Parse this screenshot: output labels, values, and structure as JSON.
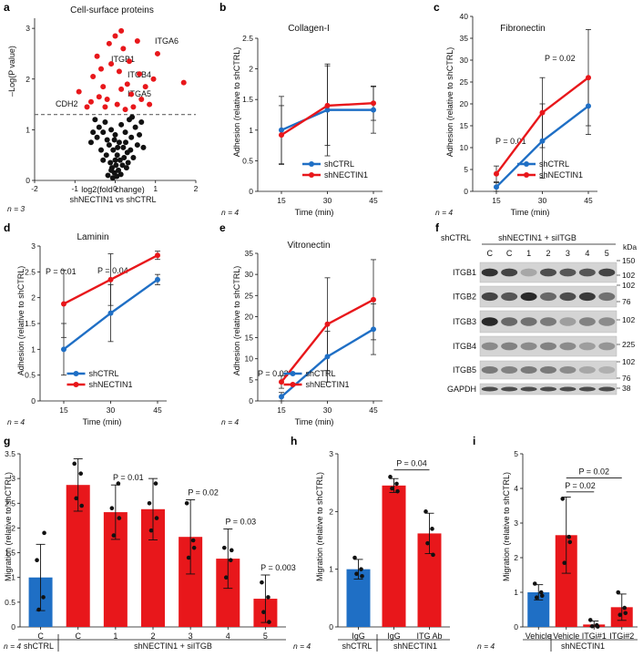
{
  "colors": {
    "blue": "#1f6fc5",
    "red": "#e8171b",
    "black": "#111111",
    "grey": "#666666",
    "blot_bg": "#d4d4d4"
  },
  "panels": {
    "a": {
      "label": "a",
      "title": "Cell-surface proteins",
      "xlabel_line1": "log2(fold change)",
      "xlabel_line2": "shNECTIN1 vs shCTRL",
      "ylabel": "–Log(P value)",
      "n": "n = 3",
      "labels": [
        "ITGA6",
        "ITGB1",
        "ITGB4",
        "ITGA5",
        "CDH2"
      ]
    },
    "b": {
      "label": "b",
      "title": "Collagen-I",
      "ylabel": "Adhesion (relative to shCTRL)",
      "xlabel": "Time (min)",
      "n": "n = 4"
    },
    "c": {
      "label": "c",
      "title": "Fibronectin",
      "ylabel": "Adhesion (relative to shCTRL)",
      "xlabel": "Time (min)",
      "n": "n = 4",
      "annotations": [
        "P = 0.01",
        "P = 0.02"
      ]
    },
    "d": {
      "label": "d",
      "title": "Laminin",
      "ylabel": "Adhesion (relative to shCTRL)",
      "xlabel": "Time (min)",
      "n": "n = 4",
      "annotations": [
        "P = 0.01",
        "P = 0.04"
      ]
    },
    "e": {
      "label": "e",
      "title": "Vitronectin",
      "ylabel": "Adhesion (relative to shCTRL)",
      "xlabel": "Time (min)",
      "n": "n = 4",
      "annotations": [
        "P = 0.02"
      ]
    },
    "f": {
      "label": "f",
      "group1": "shCTRL",
      "group2": "shNECTIN1 + siITGB",
      "lanes": [
        "C",
        "C",
        "1",
        "2",
        "3",
        "4",
        "5"
      ],
      "rows": [
        "ITGB1",
        "ITGB2",
        "ITGB3",
        "ITGB4",
        "ITGB5",
        "GAPDH"
      ],
      "kda_title": "kDa",
      "kda": [
        "150",
        "102",
        "102",
        "76",
        "102",
        "225",
        "102",
        "76",
        "38"
      ]
    },
    "g": {
      "label": "g",
      "ylabel": "Migration (relative to shCTRL)",
      "n": "n = 4",
      "group1": "shCTRL",
      "group2": "shNECTIN1 + siITGB",
      "annotations": [
        "P = 0.01",
        "P = 0.02",
        "P = 0.03",
        "P = 0.003"
      ]
    },
    "h": {
      "label": "h",
      "ylabel": "Migration (relative to shCTRL)",
      "n": "n = 4",
      "group1": "shCTRL",
      "group2": "shNECTIN1",
      "annotations": [
        "P = 0.04"
      ]
    },
    "i": {
      "label": "i",
      "ylabel": "Migration (relative to shCTRL)",
      "n": "n = 4",
      "group2": "shNECTIN1",
      "annotations": [
        "P = 0.02",
        "P = 0.02",
        "P = 0.02"
      ]
    }
  },
  "chart_data": [
    {
      "id": "a",
      "type": "scatter",
      "title": "Cell-surface proteins",
      "xlabel": "log2(fold change) shNECTIN1 vs shCTRL",
      "ylabel": "–Log(P value)",
      "xlim": [
        -2,
        2
      ],
      "ylim": [
        0,
        3.2
      ],
      "xticks": [
        -2,
        -1,
        0,
        1,
        2
      ],
      "yticks": [
        0,
        1,
        2,
        3
      ],
      "threshold": 1.3,
      "highlighted": [
        {
          "label": "ITGA6",
          "x": 1.05,
          "y": 2.5
        },
        {
          "label": "ITGB1",
          "x": 0.32,
          "y": 2.05
        },
        {
          "label": "ITGB4",
          "x": 1.7,
          "y": 1.93
        },
        {
          "label": "ITGA5",
          "x": 0.5,
          "y": 1.5
        },
        {
          "label": "CDH2",
          "x": -0.05,
          "y": 1.25
        }
      ],
      "series": [
        {
          "name": "significant",
          "color": "#e8171b",
          "points": [
            [
              -0.9,
              1.75
            ],
            [
              -0.6,
              1.55
            ],
            [
              -0.55,
              2.05
            ],
            [
              -0.45,
              2.45
            ],
            [
              -0.35,
              2.2
            ],
            [
              -0.3,
              1.85
            ],
            [
              -0.2,
              1.6
            ],
            [
              -0.15,
              2.7
            ],
            [
              -0.1,
              2.3
            ],
            [
              0.0,
              2.85
            ],
            [
              0.05,
              1.5
            ],
            [
              0.1,
              2.15
            ],
            [
              0.15,
              1.8
            ],
            [
              0.2,
              2.6
            ],
            [
              0.25,
              1.4
            ],
            [
              0.3,
              1.9
            ],
            [
              0.35,
              2.35
            ],
            [
              0.4,
              1.7
            ],
            [
              0.45,
              1.45
            ],
            [
              0.6,
              2.1
            ],
            [
              0.65,
              1.6
            ],
            [
              0.75,
              1.85
            ],
            [
              0.85,
              1.5
            ],
            [
              0.95,
              2.0
            ],
            [
              -0.25,
              1.45
            ],
            [
              -0.7,
              1.45
            ],
            [
              0.55,
              2.75
            ],
            [
              -0.4,
              1.65
            ],
            [
              0.15,
              2.95
            ],
            [
              1.05,
              2.5
            ],
            [
              1.7,
              1.93
            ]
          ]
        },
        {
          "name": "non-significant",
          "color": "#111111",
          "points": [
            [
              -0.5,
              1.2
            ],
            [
              -0.4,
              1.05
            ],
            [
              -0.3,
              0.95
            ],
            [
              -0.25,
              1.15
            ],
            [
              -0.2,
              0.8
            ],
            [
              -0.15,
              0.7
            ],
            [
              -0.1,
              1.0
            ],
            [
              -0.05,
              0.6
            ],
            [
              0.0,
              0.9
            ],
            [
              0.05,
              0.5
            ],
            [
              0.1,
              0.75
            ],
            [
              0.15,
              1.1
            ],
            [
              0.2,
              0.65
            ],
            [
              0.25,
              0.95
            ],
            [
              0.3,
              0.55
            ],
            [
              0.35,
              1.2
            ],
            [
              0.4,
              0.85
            ],
            [
              0.45,
              0.45
            ],
            [
              0.5,
              1.05
            ],
            [
              0.55,
              0.7
            ],
            [
              -0.45,
              0.85
            ],
            [
              -0.35,
              0.6
            ],
            [
              -0.3,
              0.4
            ],
            [
              -0.22,
              0.5
            ],
            [
              -0.12,
              0.35
            ],
            [
              -0.08,
              0.25
            ],
            [
              -0.02,
              0.15
            ],
            [
              0.02,
              0.3
            ],
            [
              0.08,
              0.2
            ],
            [
              0.12,
              0.4
            ],
            [
              0.18,
              0.3
            ],
            [
              0.22,
              0.45
            ],
            [
              0.28,
              0.25
            ],
            [
              0.32,
              0.35
            ],
            [
              0.38,
              0.6
            ],
            [
              0.6,
              0.9
            ],
            [
              0.65,
              1.15
            ],
            [
              0.7,
              0.65
            ],
            [
              -0.55,
              0.95
            ],
            [
              -0.6,
              0.75
            ],
            [
              -0.18,
              0.1
            ],
            [
              -0.06,
              0.05
            ],
            [
              0.04,
              0.08
            ],
            [
              0.14,
              0.12
            ],
            [
              -0.1,
              0.2
            ],
            [
              0.0,
              0.4
            ],
            [
              0.06,
              0.65
            ],
            [
              -0.02,
              0.8
            ],
            [
              0.26,
              0.75
            ],
            [
              0.42,
              1.25
            ]
          ]
        }
      ],
      "n": "n = 3"
    },
    {
      "id": "b",
      "type": "line",
      "title": "Collagen-I",
      "xlabel": "Time (min)",
      "ylabel": "Adhesion (relative to shCTRL)",
      "x": [
        15,
        30,
        45
      ],
      "ylim": [
        0,
        2.5
      ],
      "yticks": [
        0,
        0.5,
        1,
        1.5,
        2,
        2.5
      ],
      "legend": "bottom-right",
      "series": [
        {
          "name": "shCTRL",
          "color": "#1f6fc5",
          "values": [
            1.0,
            1.33,
            1.33
          ],
          "err": [
            0.55,
            0.75,
            0.38
          ]
        },
        {
          "name": "shNECTIN1",
          "color": "#e8171b",
          "values": [
            0.92,
            1.4,
            1.44
          ],
          "err": [
            0.48,
            0.65,
            0.28
          ]
        }
      ]
    },
    {
      "id": "c",
      "type": "line",
      "title": "Fibronectin",
      "xlabel": "Time (min)",
      "ylabel": "Adhesion (relative to shCTRL)",
      "x": [
        15,
        30,
        45
      ],
      "ylim": [
        0,
        40
      ],
      "yticks": [
        0,
        5,
        10,
        15,
        20,
        25,
        30,
        35,
        40
      ],
      "legend": "bottom-right",
      "series": [
        {
          "name": "shCTRL",
          "color": "#1f6fc5",
          "values": [
            1.0,
            11.5,
            19.5
          ],
          "err": [
            1.0,
            8.5,
            6.5
          ]
        },
        {
          "name": "shNECTIN1",
          "color": "#e8171b",
          "values": [
            4.0,
            18.0,
            26.0
          ],
          "err": [
            1.8,
            8.0,
            11.0
          ]
        }
      ]
    },
    {
      "id": "d",
      "type": "line",
      "title": "Laminin",
      "xlabel": "Time (min)",
      "ylabel": "Adhesion (relative to shCTRL)",
      "x": [
        15,
        30,
        45
      ],
      "ylim": [
        0,
        3
      ],
      "yticks": [
        0,
        0.5,
        1,
        1.5,
        2,
        2.5,
        3
      ],
      "legend": "bottom-center",
      "series": [
        {
          "name": "shCTRL",
          "color": "#1f6fc5",
          "values": [
            1.0,
            1.7,
            2.35
          ],
          "err": [
            0.5,
            0.55,
            0.1
          ]
        },
        {
          "name": "shNECTIN1",
          "color": "#e8171b",
          "values": [
            1.88,
            2.35,
            2.82
          ],
          "err": [
            0.65,
            0.5,
            0.08
          ]
        }
      ]
    },
    {
      "id": "e",
      "type": "line",
      "title": "Vitronectin",
      "xlabel": "Time (min)",
      "ylabel": "Adhesion (relative to shCTRL)",
      "x": [
        15,
        30,
        45
      ],
      "ylim": [
        0,
        35
      ],
      "yticks": [
        0,
        5,
        10,
        15,
        20,
        25,
        30,
        35
      ],
      "legend": "bottom-center",
      "series": [
        {
          "name": "shCTRL",
          "color": "#1f6fc5",
          "values": [
            1.0,
            10.5,
            17.0
          ],
          "err": [
            1.0,
            6.0,
            6.0
          ]
        },
        {
          "name": "shNECTIN1",
          "color": "#e8171b",
          "values": [
            4.5,
            18.2,
            24.0
          ],
          "err": [
            1.5,
            11.0,
            9.5
          ]
        }
      ]
    },
    {
      "id": "g",
      "type": "bar",
      "ylabel": "Migration (relative to shCTRL)",
      "ylim": [
        0,
        3.5
      ],
      "yticks": [
        0,
        0.5,
        1,
        1.5,
        2,
        2.5,
        3,
        3.5
      ],
      "categories": [
        "C",
        "C",
        "1",
        "2",
        "3",
        "4",
        "5"
      ],
      "values": [
        1.0,
        2.87,
        2.32,
        2.38,
        1.82,
        1.38,
        0.57
      ],
      "err": [
        0.67,
        0.53,
        0.55,
        0.62,
        0.75,
        0.6,
        0.48
      ],
      "colors": [
        "#1f6fc5",
        "#e8171b",
        "#e8171b",
        "#e8171b",
        "#e8171b",
        "#e8171b",
        "#e8171b"
      ],
      "points": [
        [
          1.35,
          0.6,
          0.35,
          1.9
        ],
        [
          3.3,
          3.1,
          2.6,
          2.45
        ],
        [
          2.4,
          2.9,
          1.85,
          2.2
        ],
        [
          2.5,
          2.9,
          1.95,
          2.2
        ],
        [
          2.5,
          1.75,
          1.4,
          1.6
        ],
        [
          1.6,
          1.35,
          1.0,
          1.55
        ],
        [
          0.9,
          0.6,
          0.3,
          0.1
        ]
      ],
      "annotations": [
        {
          "text": "P = 0.01",
          "bar": 2
        },
        {
          "text": "P = 0.02",
          "bar": 4
        },
        {
          "text": "P = 0.03",
          "bar": 5
        },
        {
          "text": "P = 0.003",
          "bar": 6
        }
      ]
    },
    {
      "id": "h",
      "type": "bar",
      "ylabel": "Migration (relative to shCTRL)",
      "ylim": [
        0,
        3
      ],
      "yticks": [
        0,
        1,
        2,
        3
      ],
      "categories": [
        "IgG",
        "IgG",
        "ITG Ab"
      ],
      "values": [
        1.0,
        2.45,
        1.62
      ],
      "err": [
        0.17,
        0.12,
        0.35
      ],
      "colors": [
        "#1f6fc5",
        "#e8171b",
        "#e8171b"
      ],
      "points": [
        [
          1.2,
          1.0,
          0.92,
          0.88
        ],
        [
          2.6,
          2.48,
          2.4,
          2.35
        ],
        [
          2.0,
          1.7,
          1.45,
          1.25
        ]
      ],
      "annotations": [
        {
          "text": "P = 0.04",
          "from": 1,
          "to": 2
        }
      ]
    },
    {
      "id": "i",
      "type": "bar",
      "ylabel": "Migration (relative to shCTRL)",
      "ylim": [
        0,
        5
      ],
      "yticks": [
        0,
        1,
        2,
        3,
        4,
        5
      ],
      "categories": [
        "Vehicle",
        "Vehicle",
        "ITGi#1",
        "ITGi#2"
      ],
      "values": [
        1.0,
        2.65,
        0.07,
        0.57
      ],
      "err": [
        0.22,
        1.1,
        0.1,
        0.38
      ],
      "colors": [
        "#1f6fc5",
        "#e8171b",
        "#e8171b",
        "#e8171b"
      ],
      "points": [
        [
          1.25,
          1.0,
          0.85,
          0.9
        ],
        [
          3.7,
          2.6,
          1.85,
          2.45
        ],
        [
          0.2,
          0.05,
          0.02,
          0.01
        ],
        [
          1.0,
          0.55,
          0.35,
          0.4
        ]
      ],
      "annotations": [
        {
          "text": "P = 0.02",
          "from": 1,
          "to": 3
        },
        {
          "text": "P = 0.02",
          "from": 1,
          "to": 2
        }
      ]
    }
  ]
}
